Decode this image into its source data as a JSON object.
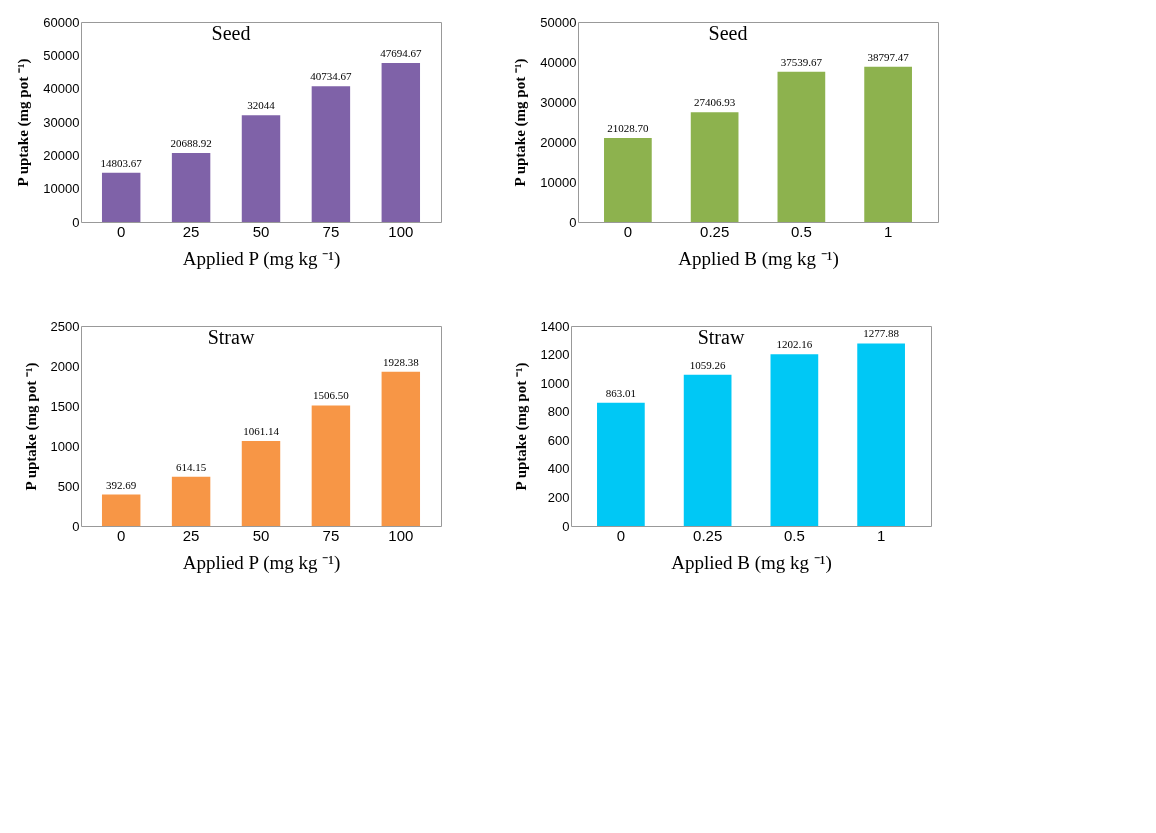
{
  "chart_data": [
    {
      "type": "bar",
      "title": "Seed",
      "xlabel": "Applied P (mg kg ⁻¹)",
      "ylabel": "P uptake (mg pot ⁻¹)",
      "categories": [
        "0",
        "25",
        "50",
        "75",
        "100"
      ],
      "values": [
        14803.67,
        20688.92,
        32044,
        40734.67,
        47694.67
      ],
      "value_labels": [
        "14803.67",
        "20688.92",
        "32044",
        "40734.67",
        "47694.67"
      ],
      "color": "#7f62a8",
      "ylim": [
        0,
        60000
      ],
      "yticks": [
        0,
        10000,
        20000,
        30000,
        40000,
        50000,
        60000
      ],
      "grid": false
    },
    {
      "type": "bar",
      "title": "Seed",
      "xlabel": "Applied B (mg kg ⁻¹)",
      "ylabel": "P uptake (mg pot ⁻¹)",
      "categories": [
        "0",
        "0.25",
        "0.5",
        "1"
      ],
      "values": [
        21028.7,
        27406.93,
        37539.67,
        38797.47
      ],
      "value_labels": [
        "21028.70",
        "27406.93",
        "37539.67",
        "38797.47"
      ],
      "color": "#8db24e",
      "ylim": [
        0,
        50000
      ],
      "yticks": [
        0,
        10000,
        20000,
        30000,
        40000,
        50000
      ],
      "grid": false
    },
    {
      "type": "bar",
      "title": "Straw",
      "xlabel": "Applied P (mg kg ⁻¹)",
      "ylabel": "P uptake (mg pot ⁻¹)",
      "categories": [
        "0",
        "25",
        "50",
        "75",
        "100"
      ],
      "values": [
        392.69,
        614.15,
        1061.14,
        1506.5,
        1928.38
      ],
      "value_labels": [
        "392.69",
        "614.15",
        "1061.14",
        "1506.50",
        "1928.38"
      ],
      "color": "#f79646",
      "ylim": [
        0,
        2500
      ],
      "yticks": [
        0,
        500,
        1000,
        1500,
        2000,
        2500
      ],
      "grid": false
    },
    {
      "type": "bar",
      "title": "Straw",
      "xlabel": "Applied B (mg kg ⁻¹)",
      "ylabel": "P uptake (mg pot ⁻¹)",
      "categories": [
        "0",
        "0.25",
        "0.5",
        "1"
      ],
      "values": [
        863.01,
        1059.26,
        1202.16,
        1277.88
      ],
      "value_labels": [
        "863.01",
        "1059.26",
        "1202.16",
        "1277.88"
      ],
      "color": "#00c8f5",
      "ylim": [
        0,
        1400
      ],
      "yticks": [
        0,
        200,
        400,
        600,
        800,
        1000,
        1200,
        1400
      ],
      "grid": false
    }
  ]
}
